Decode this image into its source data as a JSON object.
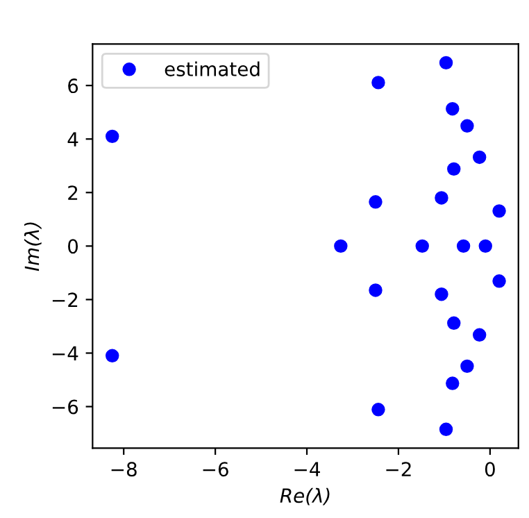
{
  "chart_data": {
    "type": "scatter",
    "xlabel": "Re(λ)",
    "ylabel": "Im(λ)",
    "series": [
      {
        "name": "estimated",
        "color": "#0000ff",
        "marker": "circle",
        "x": [
          -8.25,
          -8.25,
          -3.26,
          -2.44,
          -2.44,
          -2.5,
          -2.5,
          -1.48,
          -1.06,
          -1.06,
          -0.96,
          -0.96,
          -0.82,
          -0.82,
          -0.79,
          -0.79,
          -0.58,
          -0.5,
          -0.5,
          -0.23,
          -0.23,
          -0.1,
          0.2,
          0.2
        ],
        "values": [
          4.1,
          -4.1,
          0,
          6.11,
          -6.11,
          1.65,
          -1.65,
          0,
          1.8,
          -1.8,
          6.85,
          -6.85,
          5.13,
          -5.13,
          2.88,
          -2.88,
          0,
          4.49,
          -4.49,
          3.32,
          -3.32,
          0,
          1.31,
          -1.31
        ]
      }
    ],
    "xlim": [
      -8.68,
      0.62
    ],
    "ylim": [
      -7.55,
      7.55
    ],
    "xticks": [
      {
        "value": -8,
        "label": "−8"
      },
      {
        "value": -6,
        "label": "−6"
      },
      {
        "value": -4,
        "label": "−4"
      },
      {
        "value": -2,
        "label": "−2"
      },
      0
    ],
    "yticks": [
      {
        "value": -6,
        "label": "−6"
      },
      {
        "value": -4,
        "label": "−4"
      },
      {
        "value": -2,
        "label": "−2"
      },
      0,
      2,
      4,
      6
    ],
    "legend": "top left",
    "grid": false
  }
}
